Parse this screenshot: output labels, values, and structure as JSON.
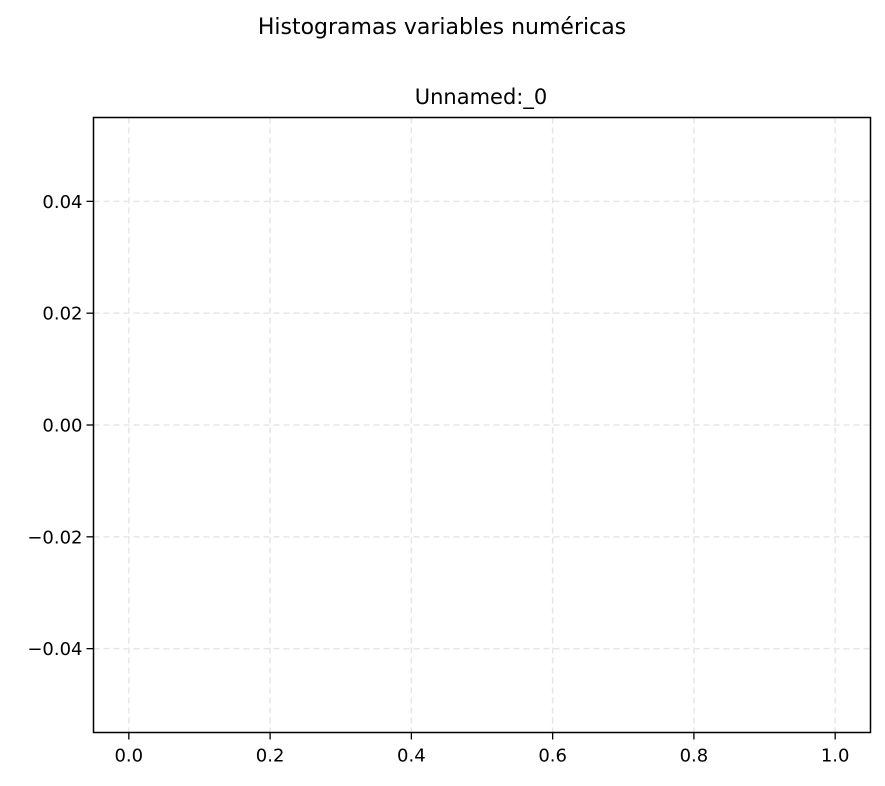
{
  "figure": {
    "suptitle": "Histogramas variables numéricas"
  },
  "chart_data": {
    "type": "bar",
    "title": "Unnamed:_0",
    "xlabel": "",
    "ylabel": "",
    "xlim": [
      -0.05,
      1.05
    ],
    "ylim": [
      -0.055,
      0.055
    ],
    "xticks": [
      0.0,
      0.2,
      0.4,
      0.6,
      0.8,
      1.0
    ],
    "xtick_labels": [
      "0.0",
      "0.2",
      "0.4",
      "0.6",
      "0.8",
      "1.0"
    ],
    "yticks": [
      0.04,
      0.02,
      0.0,
      -0.02,
      -0.04
    ],
    "ytick_labels": [
      "0.04",
      "0.02",
      "0.00",
      "−0.02",
      "−0.04"
    ],
    "grid": true,
    "grid_style": "dashed",
    "series": [],
    "colors": {
      "axis": "#000000",
      "grid": "#e6e6e6",
      "background": "#ffffff"
    }
  }
}
